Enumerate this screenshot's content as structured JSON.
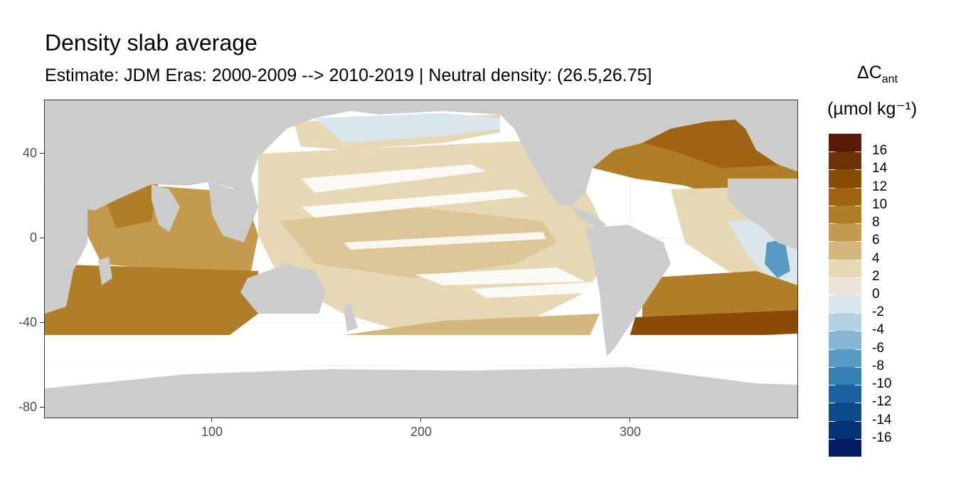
{
  "title": "Density slab average",
  "subtitle": "Estimate: JDM Eras: 2000-2009 --> 2010-2019 | Neutral density: (26.5,26.75]",
  "legend": {
    "title_line1": "ΔC",
    "title_sub": "ant",
    "title_line2": "(µmol kg⁻¹)",
    "labels": [
      "16",
      "14",
      "12",
      "10",
      "8",
      "6",
      "4",
      "2",
      "0",
      "-2",
      "-4",
      "-6",
      "-8",
      "-10",
      "-12",
      "-14",
      "-16"
    ],
    "colors": [
      "#5a1a05",
      "#6e3006",
      "#8a4a08",
      "#9e6212",
      "#b07e28",
      "#c39a4e",
      "#d3b77e",
      "#e6d7b5",
      "#ece6da",
      "#dae5ec",
      "#b4d1e2",
      "#86b6d3",
      "#5a9bc4",
      "#3581b4",
      "#1b62a0",
      "#0b4989",
      "#063577",
      "#021c66"
    ]
  },
  "axes": {
    "y_ticks": [
      "40",
      "0",
      "-40",
      "-80"
    ],
    "x_ticks": [
      "100",
      "200",
      "300"
    ],
    "xlim": [
      20,
      380
    ],
    "ylim": [
      -85,
      65
    ]
  },
  "map": {
    "land_color": "#cccccc",
    "ocean_color": "#ffffff",
    "gridline_color": "#ebebeb"
  }
}
